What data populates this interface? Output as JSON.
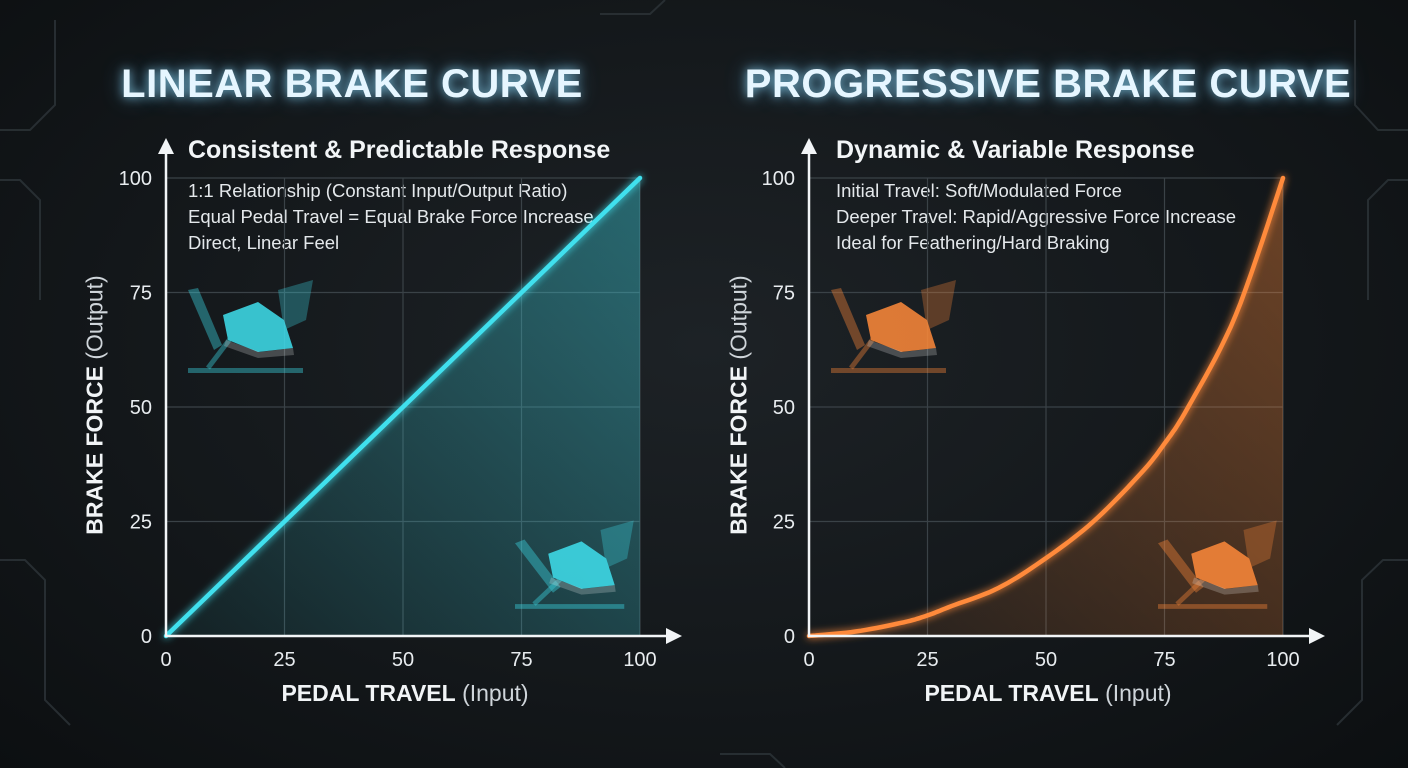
{
  "chart_data": [
    {
      "type": "line",
      "title": "LINEAR BRAKE CURVE",
      "subtitle": "Consistent & Predictable Response",
      "notes": [
        "1:1 Relationship (Constant Input/Output Ratio)",
        "Equal Pedal Travel = Equal Brake Force Increase",
        "Direct, Linear Feel"
      ],
      "xlabel_main": "PEDAL TRAVEL",
      "xlabel_sub": "(Input)",
      "ylabel_main": "BRAKE FORCE",
      "ylabel_sub": "(Output)",
      "xlim": [
        0,
        100
      ],
      "ylim": [
        0,
        100
      ],
      "x_ticks": [
        0,
        25,
        50,
        75,
        100
      ],
      "y_ticks": [
        0,
        25,
        50,
        75,
        100
      ],
      "grid": true,
      "color": "#3fe0ee",
      "series": [
        {
          "x": [
            0,
            10,
            20,
            30,
            40,
            50,
            60,
            70,
            80,
            90,
            100
          ],
          "values": [
            0,
            10,
            20,
            30,
            40,
            50,
            60,
            70,
            80,
            90,
            100
          ]
        }
      ],
      "icons": [
        "pedal-foot-icon",
        "pedal-foot-pressed-icon"
      ]
    },
    {
      "type": "line",
      "title": "PROGRESSIVE BRAKE CURVE",
      "subtitle": "Dynamic & Variable Response",
      "notes": [
        "Initial Travel: Soft/Modulated Force",
        "Deeper Travel: Rapid/Aggressive Force Increase",
        "Ideal for Feathering/Hard Braking"
      ],
      "xlabel_main": "PEDAL TRAVEL",
      "xlabel_sub": "(Input)",
      "ylabel_main": "BRAKE FORCE",
      "ylabel_sub": "(Output)",
      "xlim": [
        0,
        100
      ],
      "ylim": [
        0,
        100
      ],
      "x_ticks": [
        0,
        25,
        50,
        75,
        100
      ],
      "y_ticks": [
        0,
        25,
        50,
        75,
        100
      ],
      "grid": true,
      "color": "#ff8a3a",
      "series": [
        {
          "x": [
            0,
            10,
            20,
            25,
            30,
            40,
            50,
            60,
            70,
            75,
            80,
            90,
            100
          ],
          "values": [
            0,
            1,
            3,
            4.5,
            6.5,
            10.5,
            17,
            25,
            35.5,
            42,
            50,
            70,
            100
          ]
        }
      ],
      "icons": [
        "pedal-foot-icon",
        "pedal-foot-pressed-icon"
      ]
    }
  ]
}
